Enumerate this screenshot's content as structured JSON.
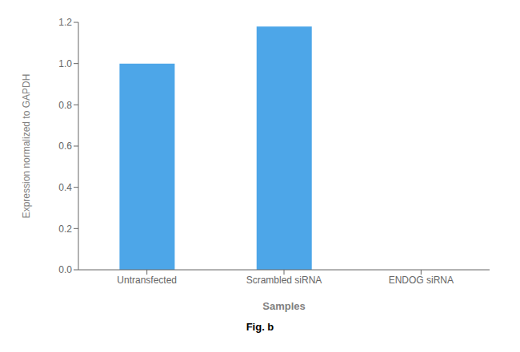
{
  "chart_data": {
    "type": "bar",
    "categories": [
      "Untransfected",
      "Scrambled siRNA",
      "ENDOG siRNA"
    ],
    "values": [
      1.0,
      1.18,
      0.0
    ],
    "color": "#4da6e8",
    "xlabel": "Samples",
    "ylabel": "Expression normalized to GAPDH",
    "ylim": [
      0,
      1.2
    ],
    "yticks": [
      {
        "value": 0,
        "label": "0.0"
      },
      0.2,
      0.4,
      0.6,
      0.8,
      {
        "value": 1,
        "label": "1.0"
      },
      1.2
    ],
    "grid": false,
    "annotations": [
      "Fig. b"
    ]
  }
}
